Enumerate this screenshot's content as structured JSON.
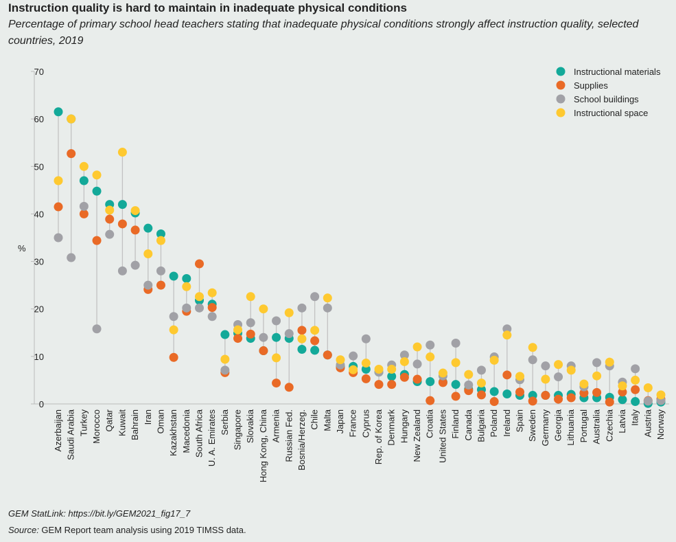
{
  "title": "Instruction quality is hard to maintain in inadequate physical conditions",
  "subtitle": "Percentage of primary school head teachers stating that inadequate physical conditions strongly affect instruction quality, selected countries, 2019",
  "statlink": "GEM StatLink: https://bit.ly/GEM2021_fig17_7",
  "source_label": "Source:",
  "source": " GEM Report team analysis using 2019 TIMSS data.",
  "chart_data": {
    "type": "scatter",
    "ylabel": "%",
    "ylim": [
      0,
      70
    ],
    "yticks": [
      0,
      10,
      20,
      30,
      40,
      50,
      60,
      70
    ],
    "legend_position": "top-right",
    "grid": false,
    "categories": [
      "Azerbaijan",
      "Saudi Arabia",
      "Turkey",
      "Morocco",
      "Qatar",
      "Kuwait",
      "Bahrain",
      "Iran",
      "Oman",
      "Kazakhstan",
      "Macedonia",
      "South Africa",
      "U. A. Emirates",
      "Serbia",
      "Singapore",
      "Slovakia",
      "Hong Kong, China",
      "Armenia",
      "Russian Fed.",
      "Bosnia/Herzeg.",
      "Chile",
      "Malta",
      "Japan",
      "France",
      "Cyprus",
      "Rep. of Korea",
      "Denmark",
      "Hungary",
      "New Zealand",
      "Croatia",
      "United States",
      "Finland",
      "Canada",
      "Bulgaria",
      "Poland",
      "Ireland",
      "Spain",
      "Sweden",
      "Germany",
      "Georgia",
      "Lithuania",
      "Portugal",
      "Australia",
      "Czechia",
      "Latvia",
      "Italy",
      "Austria",
      "Norway"
    ],
    "series": [
      {
        "name": "Instructional materials",
        "color": "#13a999",
        "values": [
          61.5,
          60,
          47,
          44.8,
          42,
          42,
          40.2,
          37,
          35.8,
          26.9,
          26.4,
          21.8,
          21,
          14.6,
          14.9,
          13.8,
          11.2,
          14,
          13.8,
          11.5,
          11.3,
          10.3,
          7.9,
          7.9,
          7.3,
          6.7,
          5.8,
          6.2,
          4.7,
          4.7,
          4.6,
          4.1,
          3.1,
          3,
          2.6,
          2.1,
          1.8,
          1.8,
          1.8,
          1.8,
          2,
          1.3,
          1.3,
          1.4,
          0.9,
          0.5,
          0.1,
          0.4
        ]
      },
      {
        "name": "Supplies",
        "color": "#e96a26",
        "values": [
          41.5,
          52.7,
          40,
          34.4,
          38.9,
          37.9,
          36.6,
          24.1,
          25,
          9.8,
          19.5,
          29.5,
          20.3,
          6.6,
          13.8,
          14.7,
          11.2,
          4.4,
          3.5,
          15.5,
          13.3,
          10.3,
          7.6,
          6.6,
          5.3,
          4.1,
          4.1,
          5.6,
          5.2,
          0.7,
          4.5,
          1.6,
          2.8,
          1.9,
          0.5,
          6.1,
          2.5,
          0.6,
          1.8,
          1,
          1.3,
          2.3,
          2.4,
          0.4,
          2.5,
          3,
          0.7,
          1
        ]
      },
      {
        "name": "School buildings",
        "color": "#a1a1a6",
        "values": [
          35,
          30.8,
          41.6,
          15.8,
          35.7,
          28,
          29.2,
          25,
          28,
          18.4,
          20.2,
          20.2,
          18.4,
          7.1,
          16.7,
          17.1,
          14,
          17.5,
          14.8,
          20.2,
          22.6,
          20.2,
          8.2,
          10.1,
          13.7,
          6.7,
          8.2,
          10.3,
          8.4,
          12.4,
          5.9,
          12.8,
          4,
          7.1,
          9.9,
          15.8,
          5.1,
          9.3,
          8,
          5.7,
          8,
          3.6,
          8.7,
          8,
          4.6,
          7.4,
          0.6,
          0.7
        ]
      },
      {
        "name": "Instructional space",
        "color": "#fec930",
        "values": [
          47,
          60,
          50,
          48.2,
          40.8,
          53,
          40.7,
          31.6,
          34.4,
          15.6,
          24.7,
          22.6,
          23.4,
          9.4,
          15.6,
          22.6,
          20,
          9.7,
          19.2,
          13.7,
          15.5,
          22.3,
          9.3,
          7.2,
          8.6,
          7.3,
          7.3,
          8.9,
          12,
          9.9,
          6.5,
          8.7,
          6.2,
          4.4,
          9.2,
          14.5,
          5.8,
          11.9,
          5.2,
          8.3,
          7.1,
          4.2,
          5.9,
          8.8,
          3.8,
          5,
          3.4,
          1.9
        ]
      }
    ]
  }
}
